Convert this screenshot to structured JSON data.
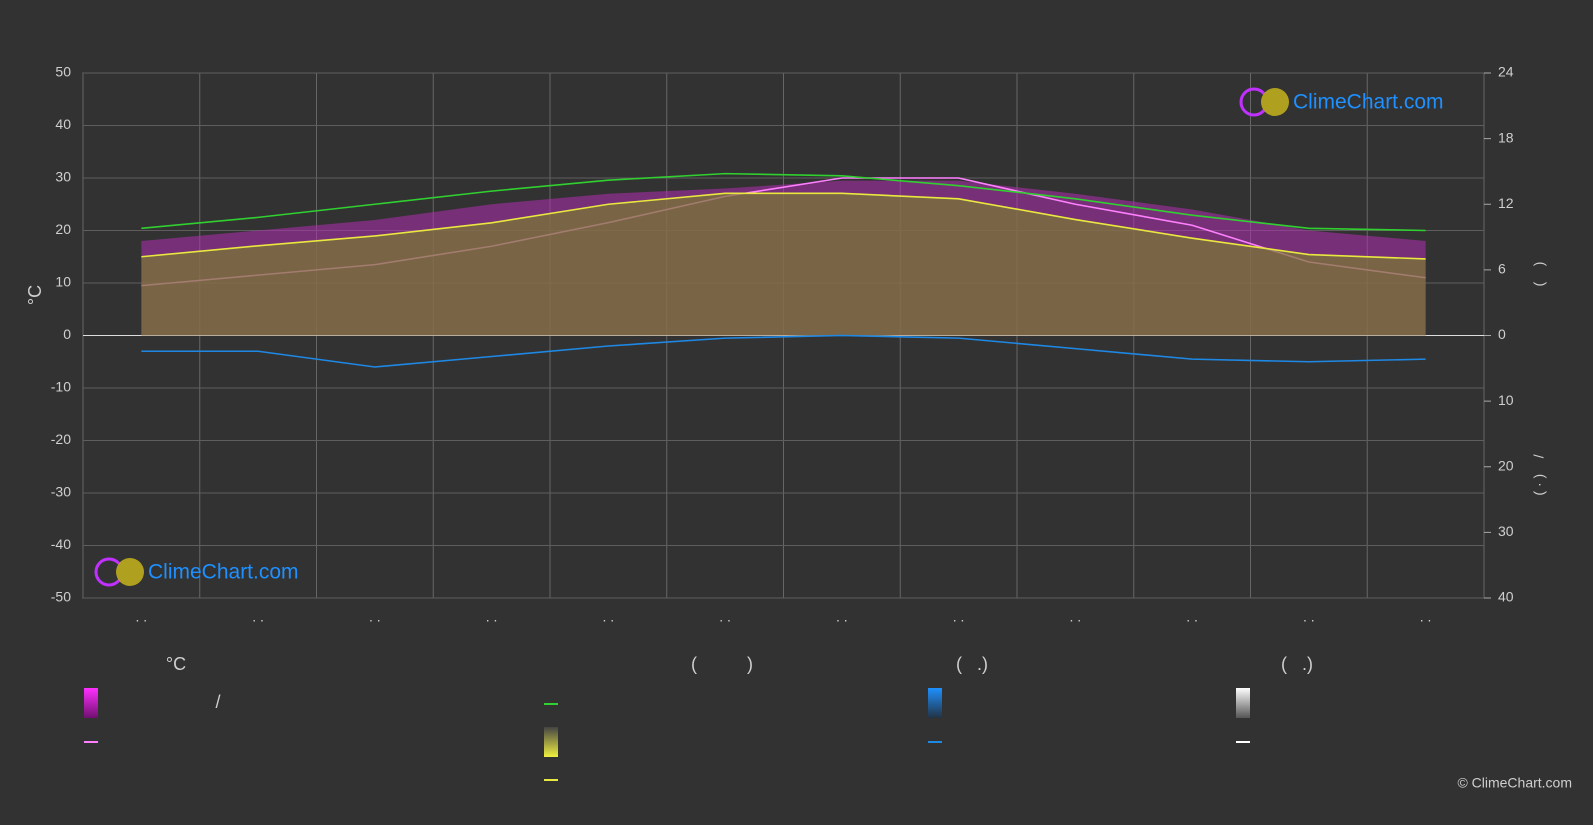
{
  "chart_data": {
    "type": "line",
    "ylabel": "°C",
    "categories": [
      ". .",
      ". .",
      ". .",
      ". .",
      ". .",
      ". .",
      ". .",
      ". .",
      ". .",
      ". .",
      ". .",
      ". ."
    ],
    "ylim": [
      -50,
      50
    ],
    "yticks": [
      -50,
      -40,
      -30,
      -20,
      -10,
      0,
      10,
      20,
      30,
      40,
      50
    ],
    "y2lim": [
      -24,
      24
    ],
    "y2ticks": [
      0,
      6,
      12,
      18,
      24
    ],
    "y3lim": [
      40,
      -40
    ],
    "y3ticks": [
      10,
      20,
      30,
      40
    ],
    "grid": true,
    "series": [
      {
        "color": "#b030b0",
        "style": "area",
        "values": [
          18,
          20,
          22,
          25,
          27,
          28,
          29.5,
          29.5,
          27,
          24,
          20,
          18
        ]
      },
      {
        "color": "#ff80ff",
        "style": "line",
        "values": [
          9.5,
          11.5,
          13.5,
          17,
          21.5,
          26.5,
          30,
          30,
          25,
          21,
          14,
          11
        ]
      },
      {
        "color": "#30d030",
        "style": "line",
        "axis": "y2",
        "values": [
          9.8,
          10.8,
          12,
          13.2,
          14.2,
          14.8,
          14.6,
          13.7,
          12.5,
          11,
          9.8,
          9.6
        ]
      },
      {
        "color": "#e8e840",
        "style": "line",
        "axis": "y2",
        "area_color": "#7a7a30",
        "values": [
          7.2,
          8.2,
          9.1,
          10.3,
          12,
          13,
          13,
          12.5,
          10.6,
          8.9,
          7.4,
          7
        ]
      },
      {
        "color": "#1e88e5",
        "style": "line",
        "axis": "y3",
        "values": [
          2.4,
          2.4,
          4.8,
          3.2,
          1.6,
          0.4,
          0,
          0.4,
          2,
          3.6,
          4,
          3.6
        ]
      }
    ],
    "right_label_top": "(    )",
    "right_label_bottom": "( · )    /",
    "logo_text": "ClimeChart.com",
    "copyright": "© ClimeChart.com",
    "legend_headers": [
      "°C",
      "(          )",
      "(   .)",
      "(   .)"
    ],
    "legend_slash": "/"
  }
}
